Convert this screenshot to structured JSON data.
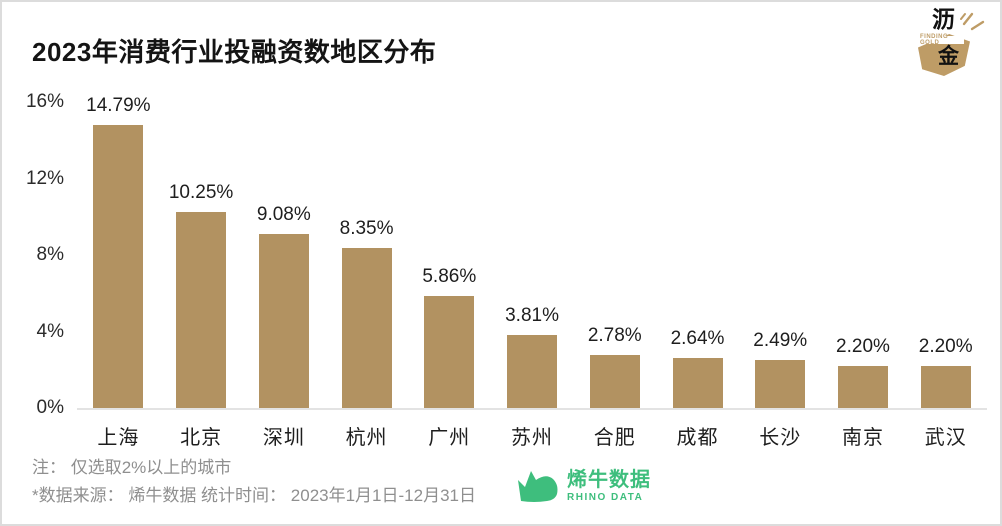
{
  "header": {
    "title": "2023年消费行业投融资数地区分布",
    "logo": {
      "char_top": "沥",
      "char_bottom": "金",
      "subtitle": "FINDING GOLD",
      "color": "#BE9C66"
    }
  },
  "chart_data": {
    "type": "bar",
    "title": "2023年消费行业投融资数地区分布",
    "categories": [
      "上海",
      "北京",
      "深圳",
      "杭州",
      "广州",
      "苏州",
      "合肥",
      "成都",
      "长沙",
      "南京",
      "武汉"
    ],
    "values": [
      14.79,
      10.25,
      9.08,
      8.35,
      5.86,
      3.81,
      2.78,
      2.64,
      2.49,
      2.2,
      2.2
    ],
    "value_labels": [
      "14.79%",
      "10.25%",
      "9.08%",
      "8.35%",
      "5.86%",
      "3.81%",
      "2.78%",
      "2.64%",
      "2.49%",
      "2.20%",
      "2.20%"
    ],
    "yticks": [
      "16%",
      "12%",
      "8%",
      "4%",
      "0%"
    ],
    "ylim": [
      0,
      16
    ],
    "ylabel": "",
    "xlabel": "",
    "grid": false,
    "legend": false,
    "bar_color": "#B29261",
    "axis_line_color": "#E3E3E3"
  },
  "footer": {
    "note1": "注： 仅选取2%以上的城市",
    "note2": "*数据来源： 烯牛数据 统计时间： 2023年1月1日-12月31日",
    "brand": {
      "name": "烯牛数据",
      "latin": "RHINO DATA",
      "color": "#3EBE7D"
    }
  }
}
